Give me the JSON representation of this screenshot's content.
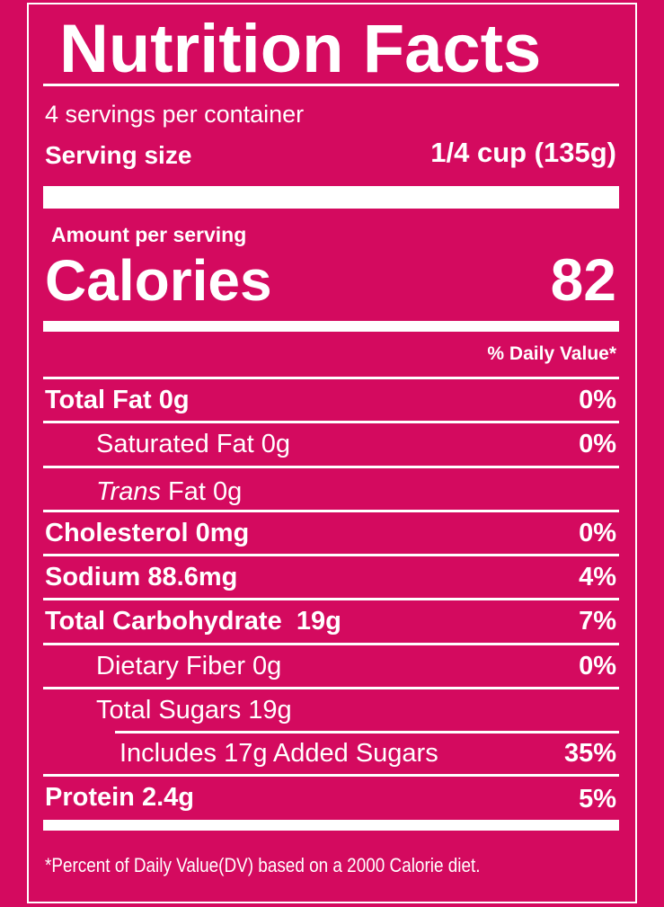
{
  "title": "Nutrition Facts",
  "servings": "4 servings per container",
  "serving_size": {
    "label": "Serving size",
    "value": "1/4 cup (135g)"
  },
  "amount_per_serving": "Amount per serving",
  "calories": {
    "label": "Calories",
    "value": 82
  },
  "dv_header": "% Daily Value*",
  "rows": [
    {
      "label": "Total Fat 0g",
      "dv": "0%"
    },
    {
      "label": "Saturated Fat 0g",
      "dv": "0%"
    },
    {
      "label_italic": "Trans",
      "label": "Fat 0g"
    },
    {
      "label": "Cholesterol 0mg",
      "dv": "0%"
    },
    {
      "label": "Sodium 88.6mg",
      "dv": "4%"
    },
    {
      "label": "Total Carbohydrate  19g",
      "dv": "7%"
    },
    {
      "label": "Dietary Fiber 0g",
      "dv": "0%"
    },
    {
      "label": "Total Sugars 19g"
    },
    {
      "label": "Includes 17g Added Sugars",
      "dv": "35%"
    },
    {
      "label": "Protein 2.4g",
      "dv": "5%"
    }
  ],
  "footnote": "*Percent of Daily Value(DV) based on a 2000 Calorie diet."
}
